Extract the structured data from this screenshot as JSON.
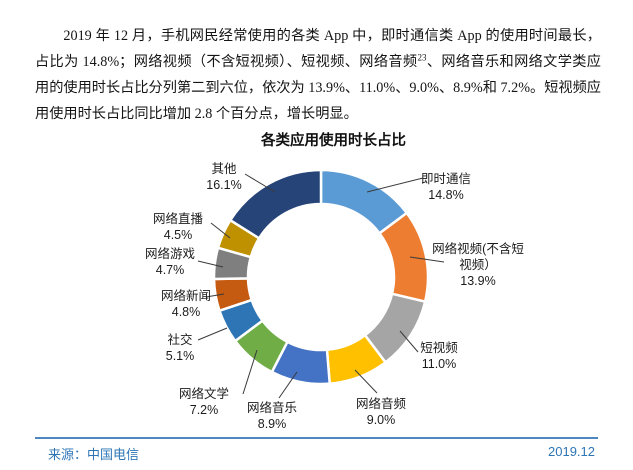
{
  "paragraph": {
    "part1": "2019 年 12 月，手机网民经常使用的各类 App 中，即时通信类 App 的使用时间最长，占比为 14.8%；网络视频（不含短视频）、短视频、网络音频",
    "superscript": "23",
    "part2": "、网络音乐和网络文学类应用的使用时长占比分列第二到六位，依次为 13.9%、11.0%、9.0%、8.9%和 7.2%。短视频应用使用时长占比同比增加 2.8 个百分点，增长明显。"
  },
  "footer": {
    "source": "来源：中国电信",
    "date": "2019.12",
    "rule_color": "#4E87C0",
    "text_color": "#2E75B6"
  },
  "chart_data": {
    "type": "pie",
    "subtype": "donut",
    "title": "各类应用使用时长占比",
    "unit": "%",
    "start_angle_deg": 0,
    "direction": "clockwise",
    "legend_position": "none",
    "slices": [
      {
        "label": "即时通信",
        "value": 14.8,
        "color": "#5B9BD5"
      },
      {
        "label": "网络视频(不含短视频）",
        "label_lines": [
          "网络视频(不含短",
          "视频）"
        ],
        "value": 13.9,
        "color": "#ED7D31"
      },
      {
        "label": "短视频",
        "value": 11.0,
        "color": "#A5A5A5"
      },
      {
        "label": "网络音频",
        "value": 9.0,
        "color": "#FFC000"
      },
      {
        "label": "网络音乐",
        "value": 8.9,
        "color": "#4472C4"
      },
      {
        "label": "网络文学",
        "value": 7.2,
        "color": "#70AD47"
      },
      {
        "label": "社交",
        "value": 5.1,
        "color": "#2E75B6"
      },
      {
        "label": "网络新闻",
        "value": 4.8,
        "color": "#C55A11"
      },
      {
        "label": "网络游戏",
        "value": 4.7,
        "color": "#7F7F7F"
      },
      {
        "label": "网络直播",
        "value": 4.5,
        "color": "#BF9000"
      },
      {
        "label": "其他",
        "value": 16.1,
        "color": "#264478"
      }
    ]
  }
}
